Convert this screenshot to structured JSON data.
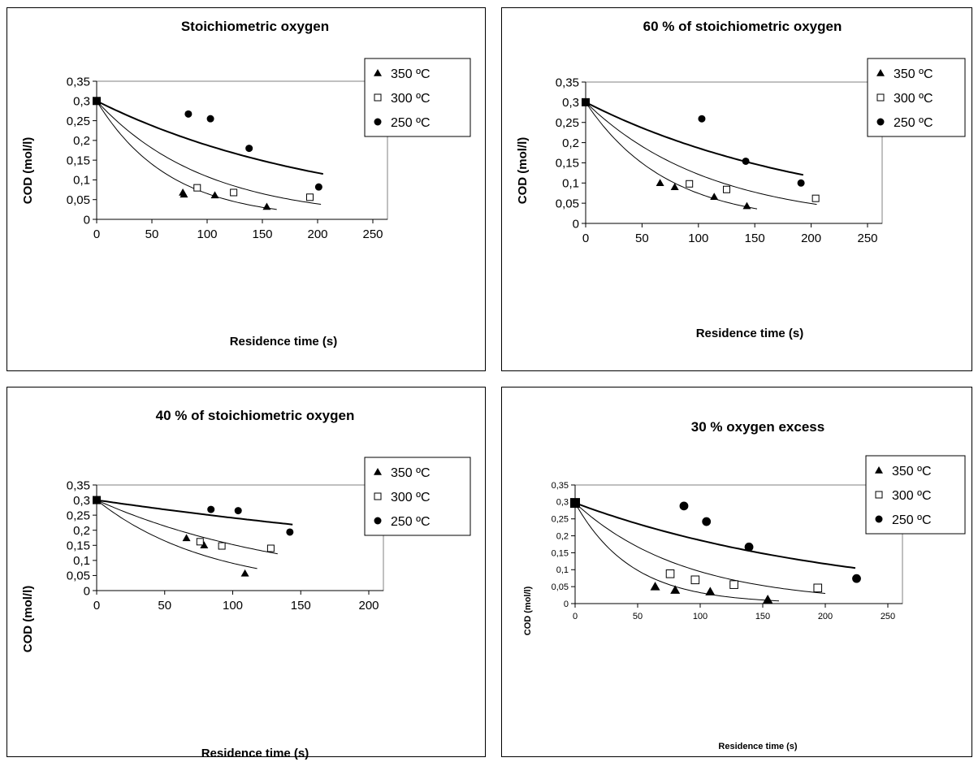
{
  "chart_data": [
    {
      "type": "scatter",
      "title": "Stoichiometric oxygen",
      "xlabel": "Residence time (s)",
      "ylabel": "COD (mol/l)",
      "xlim": [
        0,
        250
      ],
      "ylim": [
        0,
        0.35
      ],
      "xticks": [
        "0",
        "50",
        "100",
        "150",
        "200",
        "250"
      ],
      "yticks": [
        "0",
        "0,05",
        "0,1",
        "0,15",
        "0,2",
        "0,25",
        "0,3",
        "0,35"
      ],
      "legend": "top-right",
      "initial_point": {
        "x": 0,
        "y": 0.3
      },
      "series": [
        {
          "name": "350 ºC",
          "marker": "triangle",
          "points": [
            [
              78,
              0.068
            ],
            [
              79,
              0.063
            ],
            [
              107,
              0.061
            ],
            [
              154,
              0.032
            ]
          ],
          "fit": {
            "x_max": 163,
            "y_end": 0.025
          }
        },
        {
          "name": "300 ºC",
          "marker": "square",
          "points": [
            [
              91,
              0.08
            ],
            [
              124,
              0.068
            ],
            [
              193,
              0.056
            ]
          ],
          "fit": {
            "x_max": 203,
            "y_end": 0.038
          }
        },
        {
          "name": "250 ºC",
          "marker": "circle",
          "points": [
            [
              83,
              0.267
            ],
            [
              103,
              0.255
            ],
            [
              138,
              0.18
            ],
            [
              201,
              0.082
            ]
          ],
          "fit": {
            "x_max": 205,
            "y_end": 0.115
          }
        }
      ]
    },
    {
      "type": "scatter",
      "title": "60 % of stoichiometric oxygen",
      "xlabel": "Residence time (s)",
      "ylabel": "COD (mol/l)",
      "xlim": [
        0,
        250
      ],
      "ylim": [
        0,
        0.35
      ],
      "xticks": [
        "0",
        "50",
        "100",
        "150",
        "200",
        "250"
      ],
      "yticks": [
        "0",
        "0,05",
        "0,1",
        "0,15",
        "0,2",
        "0,25",
        "0,3",
        "0,35"
      ],
      "legend": "top-right",
      "initial_point": {
        "x": 0,
        "y": 0.3
      },
      "series": [
        {
          "name": "350 ºC",
          "marker": "triangle",
          "points": [
            [
              66,
              0.1
            ],
            [
              79,
              0.09
            ],
            [
              114,
              0.066
            ],
            [
              143,
              0.043
            ]
          ],
          "fit": {
            "x_max": 152,
            "y_end": 0.036
          }
        },
        {
          "name": "300 ºC",
          "marker": "square",
          "points": [
            [
              92,
              0.098
            ],
            [
              125,
              0.084
            ],
            [
              204,
              0.062
            ]
          ],
          "fit": {
            "x_max": 205,
            "y_end": 0.047
          }
        },
        {
          "name": "250 ºC",
          "marker": "circle",
          "points": [
            [
              103,
              0.259
            ],
            [
              142,
              0.154
            ],
            [
              191,
              0.1
            ]
          ],
          "fit": {
            "x_max": 193,
            "y_end": 0.12
          }
        }
      ]
    },
    {
      "type": "scatter",
      "title": "40 % of stoichiometric oxygen",
      "xlabel": "Residence time (s)",
      "ylabel": "COD (mol/l)",
      "xlim": [
        0,
        200
      ],
      "ylim": [
        0,
        0.35
      ],
      "xticks": [
        "0",
        "50",
        "100",
        "150",
        "200"
      ],
      "yticks": [
        "0",
        "0,05",
        "0,1",
        "0,15",
        "0,2",
        "0,25",
        "0,3",
        "0,35"
      ],
      "legend": "top-right",
      "initial_point": {
        "x": 0,
        "y": 0.3
      },
      "series": [
        {
          "name": "350 ºC",
          "marker": "triangle",
          "points": [
            [
              66,
              0.174
            ],
            [
              79,
              0.15
            ],
            [
              109,
              0.057
            ]
          ],
          "fit": {
            "x_max": 118,
            "y_end": 0.073
          }
        },
        {
          "name": "300 ºC",
          "marker": "square",
          "points": [
            [
              76,
              0.162
            ],
            [
              92,
              0.148
            ],
            [
              128,
              0.14
            ]
          ],
          "fit": {
            "x_max": 133,
            "y_end": 0.122
          }
        },
        {
          "name": "250 ºC",
          "marker": "circle",
          "points": [
            [
              84,
              0.269
            ],
            [
              104,
              0.265
            ],
            [
              142,
              0.194
            ]
          ],
          "fit": {
            "x_max": 144,
            "y_end": 0.219
          }
        }
      ]
    },
    {
      "type": "scatter",
      "title": "30 % oxygen excess",
      "xlabel": "Residence time (s)",
      "ylabel": "COD (mol/l)",
      "xlim": [
        0,
        250
      ],
      "ylim": [
        0,
        0.35
      ],
      "xticks": [
        "0",
        "50",
        "100",
        "150",
        "200",
        "250"
      ],
      "yticks": [
        "0",
        "0,05",
        "0,1",
        "0,15",
        "0,2",
        "0,25",
        "0,3",
        "0,35"
      ],
      "legend": "top-right",
      "initial_point": {
        "x": 0,
        "y": 0.297
      },
      "series": [
        {
          "name": "350 ºC",
          "marker": "triangle",
          "points": [
            [
              64,
              0.05
            ],
            [
              80,
              0.04
            ],
            [
              108,
              0.035
            ],
            [
              154,
              0.012
            ]
          ],
          "fit": {
            "x_max": 163,
            "y_end": 0.008
          }
        },
        {
          "name": "300 ºC",
          "marker": "square",
          "points": [
            [
              76,
              0.088
            ],
            [
              96,
              0.07
            ],
            [
              127,
              0.056
            ],
            [
              194,
              0.046
            ]
          ],
          "fit": {
            "x_max": 200,
            "y_end": 0.03
          }
        },
        {
          "name": "250 ºC",
          "marker": "circle",
          "points": [
            [
              87,
              0.288
            ],
            [
              105,
              0.242
            ],
            [
              139,
              0.167
            ],
            [
              225,
              0.074
            ]
          ],
          "fit": {
            "x_max": 224,
            "y_end": 0.105
          }
        }
      ]
    }
  ]
}
